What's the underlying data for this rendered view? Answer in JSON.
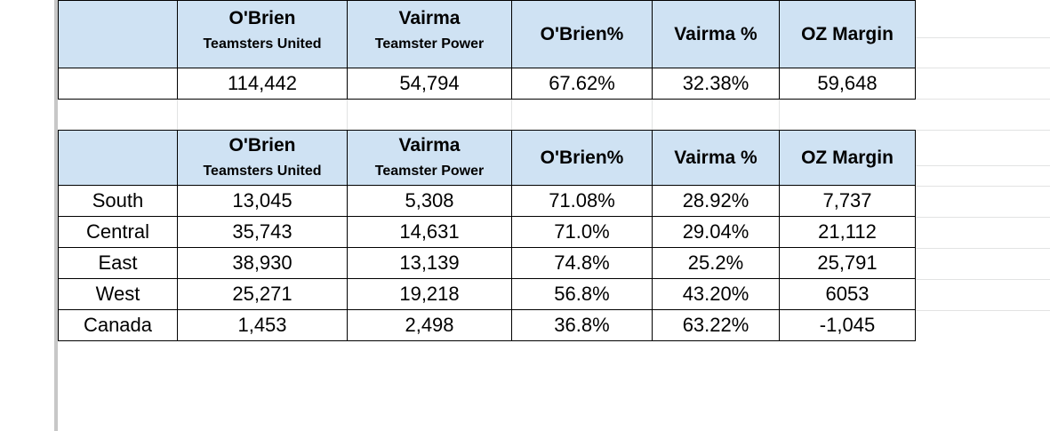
{
  "summary_table": {
    "headers": [
      {
        "main": "",
        "sub": ""
      },
      {
        "main": "O'Brien",
        "sub": "Teamsters United"
      },
      {
        "main": "Vairma",
        "sub": "Teamster Power"
      },
      {
        "main": "O'Brien%",
        "sub": ""
      },
      {
        "main": "Vairma %",
        "sub": ""
      },
      {
        "main": "OZ Margin",
        "sub": ""
      }
    ],
    "totals": [
      "",
      "114,442",
      "54,794",
      "67.62%",
      "32.38%",
      "59,648"
    ]
  },
  "regional_table": {
    "headers": [
      {
        "main": "",
        "sub": ""
      },
      {
        "main": "O'Brien",
        "sub": "Teamsters United"
      },
      {
        "main": "Vairma",
        "sub": "Teamster Power"
      },
      {
        "main": "O'Brien%",
        "sub": ""
      },
      {
        "main": "Vairma %",
        "sub": ""
      },
      {
        "main": "OZ Margin",
        "sub": ""
      }
    ],
    "rows": [
      [
        "South",
        "13,045",
        "5,308",
        "71.08%",
        "28.92%",
        "7,737"
      ],
      [
        "Central",
        "35,743",
        "14,631",
        "71.0%",
        "29.04%",
        "21,112"
      ],
      [
        "East",
        "38,930",
        "13,139",
        "74.8%",
        "25.2%",
        "25,791"
      ],
      [
        "West",
        "25,271",
        "19,218",
        "56.8%",
        "43.20%",
        "6053"
      ],
      [
        "Canada",
        "1,453",
        "2,498",
        "36.8%",
        "63.22%",
        "-1,045"
      ]
    ]
  },
  "colors": {
    "header_fill": "#cfe2f3",
    "border": "#000000",
    "gridline": "#e2e3e3",
    "frozen_divider": "#c7c7c7"
  }
}
